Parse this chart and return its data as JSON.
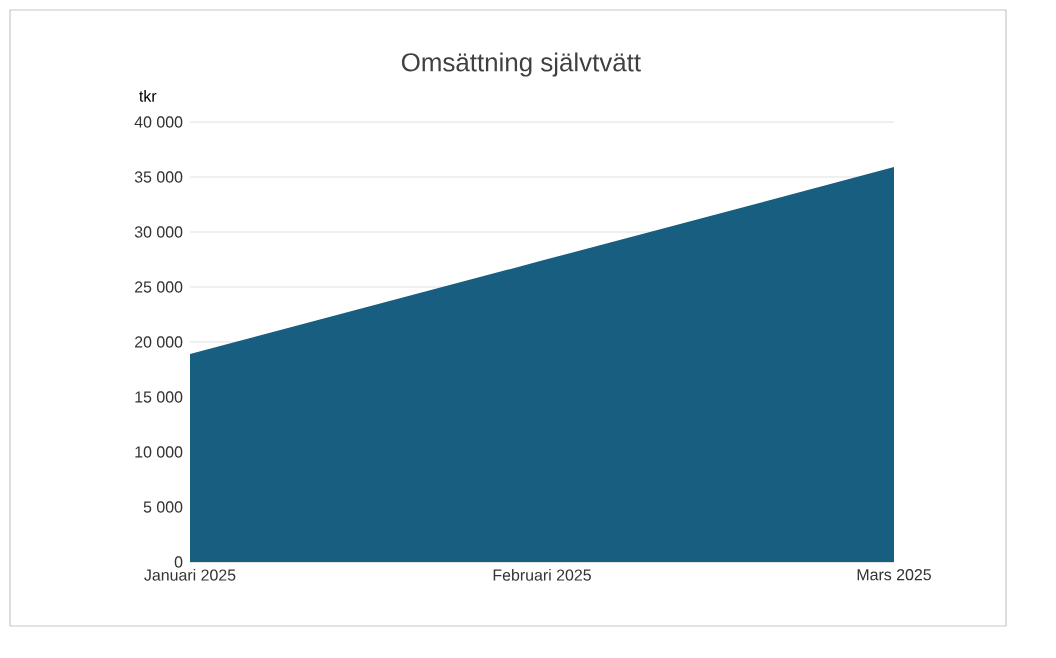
{
  "chart_data": {
    "type": "area",
    "title": "Omsättning självtvätt",
    "ylabel": "tkr",
    "categories": [
      "Januari 2025",
      "Februari 2025",
      "Mars 2025"
    ],
    "values": [
      18900,
      27400,
      35900
    ],
    "color": "#175e81",
    "ylim": [
      0,
      40000
    ],
    "yticks": [
      0,
      {
        "value": 5000,
        "label": "5 000"
      },
      {
        "value": 10000,
        "label": "10 000"
      },
      {
        "value": 15000,
        "label": "15 000"
      },
      {
        "value": 20000,
        "label": "20 000"
      },
      {
        "value": 25000,
        "label": "25 000"
      },
      {
        "value": 30000,
        "label": "30 000"
      },
      {
        "value": 35000,
        "label": "35 000"
      },
      {
        "value": 40000,
        "label": "40 000"
      }
    ],
    "grid": "y"
  }
}
